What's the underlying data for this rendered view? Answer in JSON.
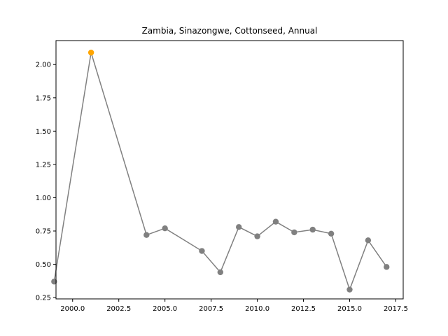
{
  "chart_data": {
    "type": "line",
    "title": "Zambia, Sinazongwe, Cottonseed, Annual",
    "xlabel": "",
    "ylabel": "",
    "xlim": [
      1999.1,
      2017.9
    ],
    "ylim": [
      0.24,
      2.18
    ],
    "x_ticks": [
      2000.0,
      2002.5,
      2005.0,
      2007.5,
      2010.0,
      2012.5,
      2015.0,
      2017.5
    ],
    "x_tick_labels": [
      "2000.0",
      "2002.5",
      "2005.0",
      "2007.5",
      "2010.0",
      "2012.5",
      "2015.0",
      "2017.5"
    ],
    "y_ticks": [
      0.25,
      0.5,
      0.75,
      1.0,
      1.25,
      1.5,
      1.75,
      2.0
    ],
    "y_tick_labels": [
      "0.25",
      "0.50",
      "0.75",
      "1.00",
      "1.25",
      "1.50",
      "1.75",
      "2.00"
    ],
    "grid": false,
    "line_color": "#808080",
    "marker_color": "#808080",
    "highlight_color": "#ffa500",
    "highlight_index": 1,
    "series": [
      {
        "x": [
          1999,
          2001,
          2004,
          2005,
          2007,
          2008,
          2009,
          2010,
          2011,
          2012,
          2013,
          2014,
          2015,
          2016,
          2017
        ],
        "values": [
          0.37,
          2.09,
          0.72,
          0.77,
          0.6,
          0.44,
          0.78,
          0.71,
          0.82,
          0.74,
          0.76,
          0.73,
          0.31,
          0.68,
          0.48
        ]
      }
    ]
  }
}
